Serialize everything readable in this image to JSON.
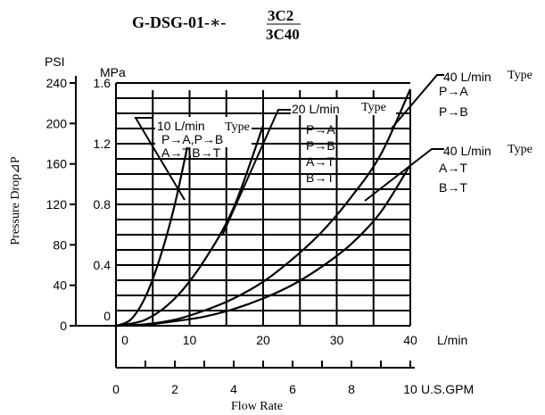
{
  "chart_data": {
    "type": "line",
    "title": {
      "prefix": "G-DSG-01-∗-",
      "upper": "3C2",
      "lower": "3C40"
    },
    "left_axis": {
      "unit": "PSI",
      "label": "Pressure Drop⊿P",
      "range": [
        0,
        240
      ],
      "ticks": [
        "0",
        "40",
        "80",
        "120",
        "160",
        "200",
        "240"
      ]
    },
    "inner_axis": {
      "unit": "MPa",
      "range": [
        0,
        1.6
      ],
      "ticks": [
        "0.4",
        "0.8",
        "1.2",
        "1.6"
      ]
    },
    "x_axis_lpm": {
      "unit": "L/min",
      "range": [
        0,
        40
      ],
      "ticks": [
        "0",
        "10",
        "20",
        "30",
        "40"
      ]
    },
    "x_axis_gpm": {
      "unit": "U.S.GPM",
      "range": [
        0,
        10
      ],
      "ticks": [
        "0",
        "2",
        "4",
        "6",
        "8",
        "10"
      ]
    },
    "xlabel": "Flow Rate",
    "grid": true,
    "x_unit": "L/min",
    "y_unit": "MPa",
    "series": [
      {
        "id": "s10",
        "x": [
          0,
          2,
          4,
          6,
          8,
          10
        ],
        "y": [
          0,
          0.04,
          0.19,
          0.45,
          0.8,
          1.25
        ]
      },
      {
        "id": "s20",
        "x": [
          0,
          4,
          8,
          12,
          16,
          20
        ],
        "y": [
          0,
          0.04,
          0.18,
          0.43,
          0.78,
          1.32
        ]
      },
      {
        "id": "s40pa",
        "x": [
          0,
          4,
          8,
          12,
          16,
          20,
          24,
          28,
          32,
          36,
          40
        ],
        "y": [
          0,
          0.01,
          0.04,
          0.1,
          0.18,
          0.29,
          0.44,
          0.62,
          0.85,
          1.13,
          1.56
        ]
      },
      {
        "id": "s40at",
        "x": [
          0,
          4,
          8,
          12,
          16,
          20,
          24,
          28,
          32,
          36,
          40
        ],
        "y": [
          0,
          0.006,
          0.03,
          0.06,
          0.11,
          0.18,
          0.27,
          0.39,
          0.54,
          0.75,
          1.06
        ]
      }
    ],
    "annotations": [
      {
        "name": "10 L/min Type",
        "size": "10 L/min",
        "type_word": "Type",
        "lines": [
          "P→A,P→B",
          "A→T,B→T"
        ]
      },
      {
        "name": "20 L/min Type",
        "size": "20 L/min",
        "type_word": "Type",
        "lines": [
          "P→A",
          "P→B",
          "A→T",
          "B→T"
        ]
      },
      {
        "name": "40 L/min Type",
        "size": "40 L/min",
        "type_word": "Type",
        "lines": [
          "P→A",
          "P→B"
        ]
      },
      {
        "name": "40 L/min Type",
        "size": "40 L/min",
        "type_word": "Type",
        "lines": [
          "A→T",
          "B→T"
        ]
      }
    ]
  }
}
